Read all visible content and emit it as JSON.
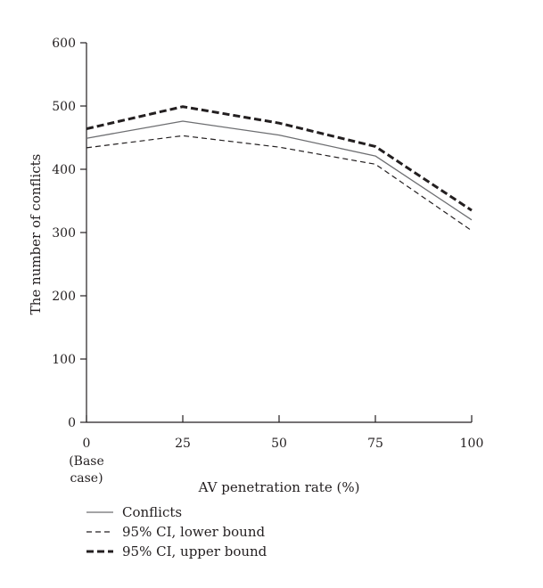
{
  "chart_data": {
    "type": "line",
    "title": "",
    "xlabel": "AV penetration rate (%)",
    "ylabel": "The number of conflicts",
    "x": [
      0,
      25,
      50,
      75,
      100
    ],
    "x_tick_labels": [
      "0",
      "25",
      "50",
      "75",
      "100"
    ],
    "x_tick_sublabel": [
      "(Base",
      "case)"
    ],
    "y_ticks": [
      0,
      100,
      200,
      300,
      400,
      500,
      600
    ],
    "ylim": [
      0,
      600
    ],
    "xlim": [
      0,
      100
    ],
    "grid": false,
    "legend_position": "bottom-left",
    "series": [
      {
        "name": "Conflicts",
        "values": [
          449,
          476,
          454,
          421,
          320
        ],
        "style": "solid",
        "color": "#6d6e71"
      },
      {
        "name": "95% CI, lower bound",
        "values": [
          434,
          453,
          435,
          408,
          303
        ],
        "style": "dashed",
        "color": "#231f20"
      },
      {
        "name": "95% CI, upper bound",
        "values": [
          464,
          499,
          473,
          436,
          335
        ],
        "style": "bold-dashed",
        "color": "#231f20"
      }
    ]
  }
}
